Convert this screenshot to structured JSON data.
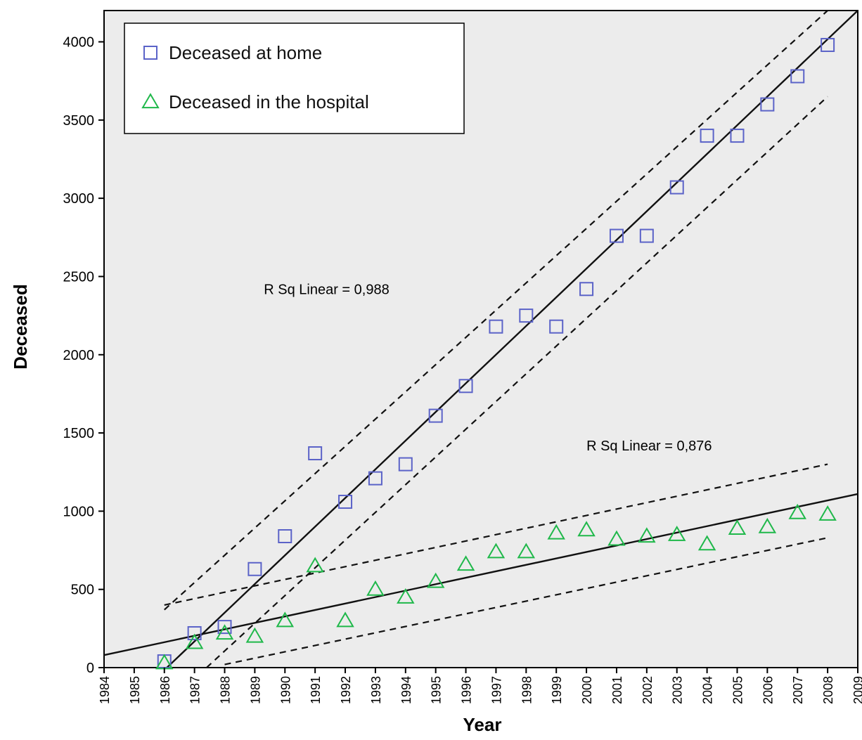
{
  "chart_data": {
    "type": "scatter",
    "title": "",
    "xlabel": "Year",
    "ylabel": "Deceased",
    "xlim": [
      1984,
      2009
    ],
    "ylim": [
      0,
      4200
    ],
    "x_ticks": [
      1984,
      1985,
      1986,
      1987,
      1988,
      1989,
      1990,
      1991,
      1992,
      1993,
      1994,
      1995,
      1996,
      1997,
      1998,
      1999,
      2000,
      2001,
      2002,
      2003,
      2004,
      2005,
      2006,
      2007,
      2008,
      2009
    ],
    "y_ticks": [
      0,
      500,
      1000,
      1500,
      2000,
      2500,
      3000,
      3500,
      4000
    ],
    "grid": false,
    "background_color": "#ececec",
    "legend_position": "top-left",
    "series": [
      {
        "name": "Deceased at home",
        "marker": "square",
        "color": "#5b63c8",
        "x": [
          1986,
          1987,
          1988,
          1989,
          1990,
          1991,
          1992,
          1993,
          1994,
          1995,
          1996,
          1997,
          1998,
          1999,
          2000,
          2001,
          2002,
          2003,
          2004,
          2005,
          2006,
          2007,
          2008
        ],
        "y": [
          40,
          220,
          260,
          630,
          840,
          1370,
          1060,
          1210,
          1300,
          1610,
          1800,
          2180,
          2250,
          2180,
          2420,
          2760,
          2760,
          3070,
          3400,
          3400,
          3600,
          3780,
          3980
        ],
        "fit": {
          "type": "linear",
          "x0": 1984,
          "y0": -382,
          "x1": 2009,
          "y1": 4200,
          "r_squared_label": "R Sq Linear = 0,988"
        },
        "ci_upper": {
          "x0": 1986,
          "y0": 370,
          "x1": 2008,
          "y1": 4200
        },
        "ci_lower": {
          "x0": 1987.4,
          "y0": 0,
          "x1": 2008,
          "y1": 3650
        }
      },
      {
        "name": "Deceased in the hospital",
        "marker": "triangle",
        "color": "#1fb84a",
        "x": [
          1986,
          1987,
          1988,
          1989,
          1990,
          1991,
          1992,
          1993,
          1994,
          1995,
          1996,
          1997,
          1998,
          1999,
          2000,
          2001,
          2002,
          2003,
          2004,
          2005,
          2006,
          2007,
          2008
        ],
        "y": [
          30,
          160,
          220,
          200,
          300,
          650,
          300,
          500,
          450,
          550,
          660,
          740,
          740,
          860,
          880,
          820,
          840,
          850,
          790,
          890,
          900,
          990,
          980
        ],
        "fit": {
          "type": "linear",
          "x0": 1984,
          "y0": 80,
          "x1": 2009,
          "y1": 1110,
          "r_squared_label": "R Sq Linear = 0,876"
        },
        "ci_upper": {
          "x0": 1986,
          "y0": 400,
          "x1": 2008,
          "y1": 1300
        },
        "ci_lower": {
          "x0": 1988,
          "y0": 20,
          "x1": 2008,
          "y1": 830
        }
      }
    ],
    "annotations": [
      {
        "text": "R Sq Linear = 0,988",
        "x": 1989.3,
        "y": 2420
      },
      {
        "text": "R Sq Linear = 0,876",
        "x": 2000,
        "y": 1420
      }
    ]
  }
}
